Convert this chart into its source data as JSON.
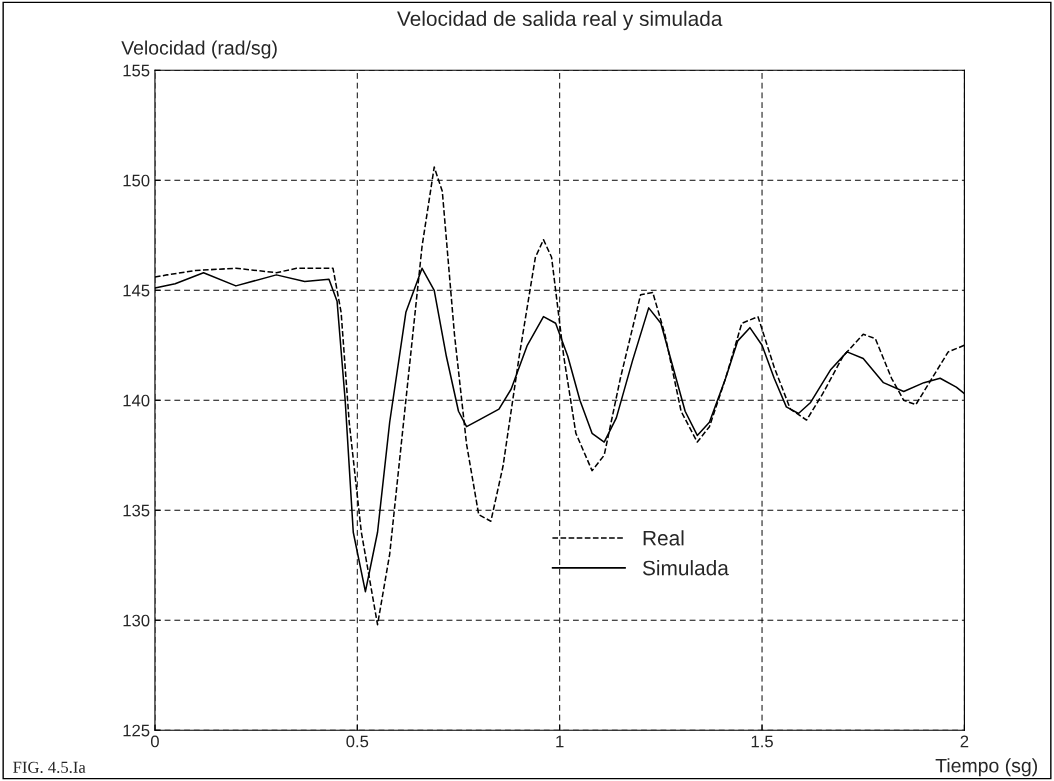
{
  "chart_data": {
    "type": "line",
    "title": "Velocidad de salida real y simulada",
    "xlabel": "Tiempo (sg)",
    "ylabel": "Velocidad (rad/sg)",
    "annotations": [
      "FIG. 4.5.Ia"
    ],
    "xlim": [
      0,
      2
    ],
    "xticks": [
      0,
      0.5,
      1,
      1.5,
      2
    ],
    "ylim": [
      125,
      155
    ],
    "yticks": [
      125,
      130,
      135,
      140,
      145,
      150,
      155
    ],
    "grid": true,
    "legend": "bottom",
    "series": [
      {
        "name": "Real",
        "color": "#000000",
        "line_style": "dashed",
        "x": [
          0,
          0.03,
          0.1,
          0.2,
          0.3,
          0.35,
          0.44,
          0.46,
          0.48,
          0.51,
          0.55,
          0.58,
          0.62,
          0.66,
          0.69,
          0.71,
          0.74,
          0.77,
          0.8,
          0.83,
          0.86,
          0.9,
          0.94,
          0.96,
          0.98,
          1.01,
          1.04,
          1.08,
          1.11,
          1.15,
          1.2,
          1.23,
          1.26,
          1.3,
          1.34,
          1.37,
          1.41,
          1.45,
          1.49,
          1.53,
          1.57,
          1.61,
          1.65,
          1.7,
          1.75,
          1.78,
          1.82,
          1.85,
          1.88,
          1.92,
          1.96,
          2.0
        ],
        "values": [
          145.6,
          145.7,
          145.9,
          146,
          145.8,
          146,
          146,
          144,
          139,
          134,
          129.8,
          133,
          140,
          147,
          150.6,
          149.5,
          143,
          138,
          134.8,
          134.5,
          137,
          142,
          146.5,
          147.3,
          146.5,
          142,
          138.5,
          136.8,
          137.5,
          141,
          144.8,
          144.9,
          143,
          139.5,
          138.1,
          138.8,
          141,
          143.5,
          143.8,
          141.5,
          139.6,
          139.1,
          140.3,
          142,
          143,
          142.8,
          141,
          140,
          139.8,
          141,
          142.2,
          142.5
        ]
      },
      {
        "name": "Simulada",
        "color": "#000000",
        "line_style": "solid",
        "x": [
          0,
          0.05,
          0.12,
          0.2,
          0.3,
          0.37,
          0.43,
          0.45,
          0.47,
          0.49,
          0.52,
          0.55,
          0.58,
          0.62,
          0.66,
          0.69,
          0.72,
          0.75,
          0.77,
          0.8,
          0.85,
          0.88,
          0.92,
          0.96,
          0.99,
          1.02,
          1.05,
          1.08,
          1.11,
          1.14,
          1.18,
          1.22,
          1.25,
          1.28,
          1.31,
          1.34,
          1.37,
          1.41,
          1.44,
          1.47,
          1.5,
          1.53,
          1.56,
          1.59,
          1.62,
          1.67,
          1.71,
          1.75,
          1.8,
          1.85,
          1.9,
          1.94,
          1.98,
          2.0
        ],
        "values": [
          145.1,
          145.3,
          145.8,
          145.2,
          145.7,
          145.4,
          145.5,
          144.5,
          140,
          134,
          131.3,
          134,
          139,
          144,
          146,
          145,
          142,
          139.5,
          138.8,
          139.1,
          139.6,
          140.5,
          142.5,
          143.8,
          143.5,
          142,
          140,
          138.5,
          138.1,
          139.2,
          141.8,
          144.2,
          143.5,
          141.5,
          139.5,
          138.4,
          139,
          141,
          142.7,
          143.3,
          142.5,
          141,
          139.7,
          139.4,
          139.9,
          141.4,
          142.2,
          141.9,
          140.8,
          140.4,
          140.8,
          141,
          140.6,
          140.3
        ]
      }
    ]
  }
}
